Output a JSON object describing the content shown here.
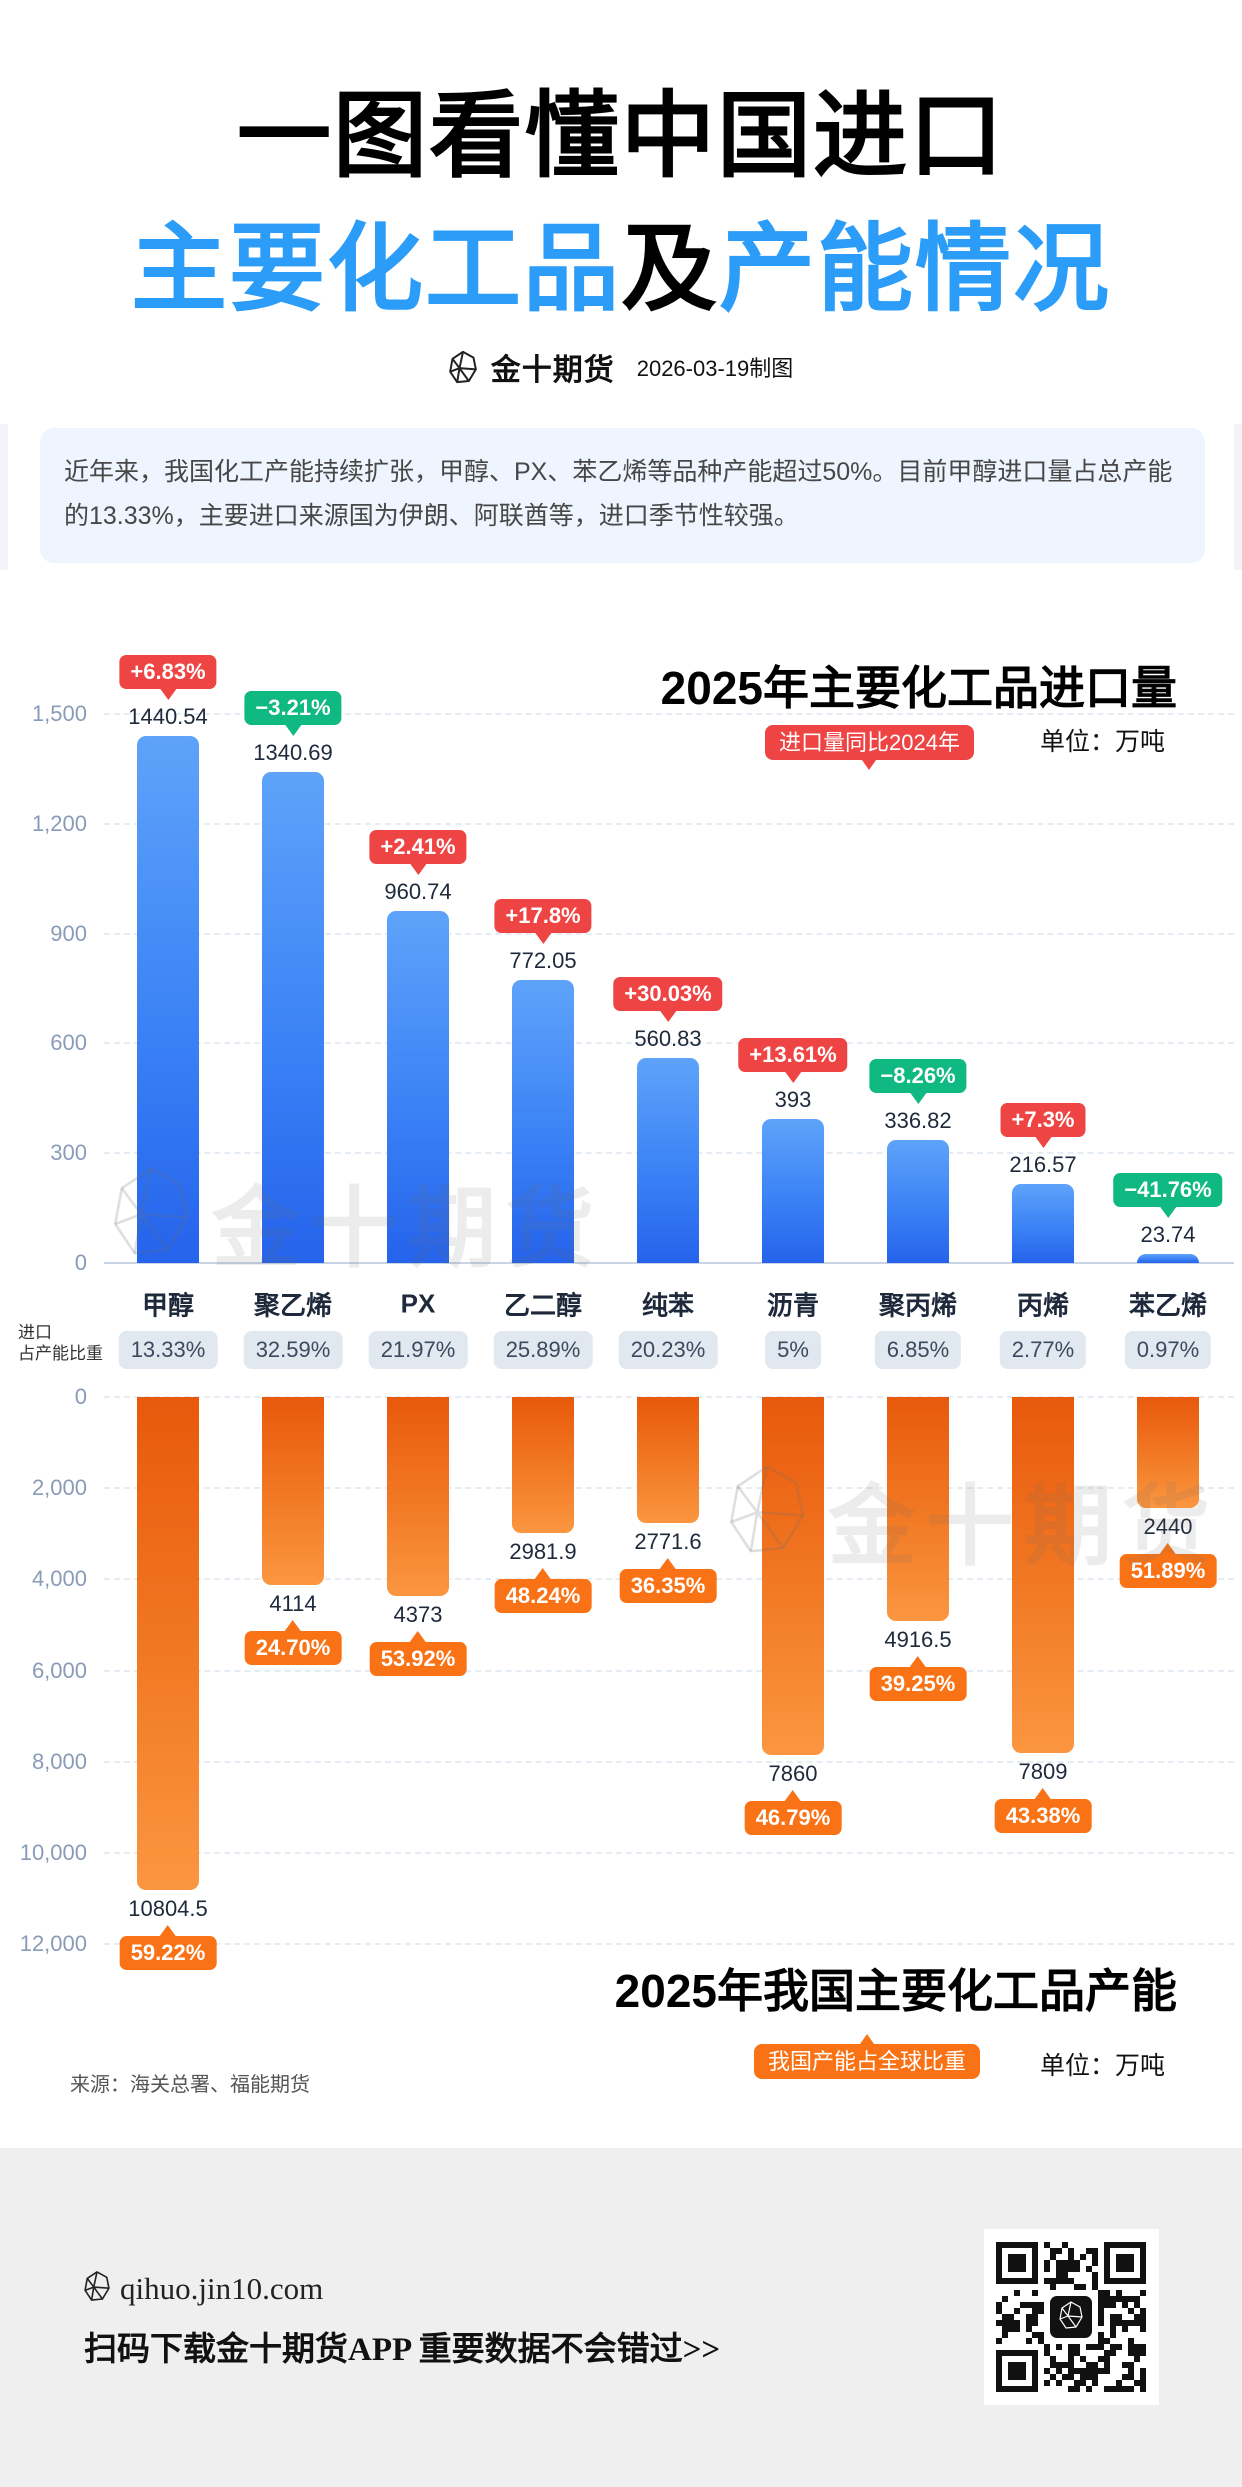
{
  "header": {
    "title_line1": "一图看懂中国进口",
    "title_line2_a": "主要化工品",
    "title_line2_b": "及",
    "title_line2_c": "产能情况",
    "brand_name": "金十期货",
    "date_label": "2026-03-19制图"
  },
  "intro": {
    "text": "近年来，我国化工产能持续扩张，甲醇、PX、苯乙烯等品种产能超过50%。目前甲醇进口量占总产能的13.33%，主要进口来源国为伊朗、阿联酋等，进口季节性较强。"
  },
  "colors": {
    "title_accent": "#2b9cf8",
    "import_bar": "#3b82f6",
    "capacity_bar": "#f97316",
    "increase": "#ef4444",
    "decrease": "#10b981",
    "share_badge": "#f97316"
  },
  "ratio_row": {
    "label_line1": "进口",
    "label_line2": "占产能比重",
    "values": [
      "13.33%",
      "32.59%",
      "21.97%",
      "25.89%",
      "20.23%",
      "5%",
      "6.85%",
      "2.77%",
      "0.97%"
    ]
  },
  "chart_data": [
    {
      "type": "bar",
      "orientation": "upward",
      "title": "2025年主要化工品进口量",
      "unit_label": "单位：万吨",
      "legend_badge": "进口量同比2024年",
      "xlabel": "",
      "ylabel": "万吨",
      "categories": [
        "甲醇",
        "聚乙烯",
        "PX",
        "乙二醇",
        "纯苯",
        "沥青",
        "聚丙烯",
        "丙烯",
        "苯乙烯"
      ],
      "values": [
        1440.54,
        1340.69,
        960.74,
        772.05,
        560.83,
        393,
        336.82,
        216.57,
        23.74
      ],
      "value_labels": [
        "1440.54",
        "1340.69",
        "960.74",
        "772.05",
        "560.83",
        "393",
        "336.82",
        "216.57",
        "23.74"
      ],
      "yoy_change": [
        "+6.83%",
        "−3.21%",
        "+2.41%",
        "+17.8%",
        "+30.03%",
        "+13.61%",
        "−8.26%",
        "+7.3%",
        "−41.76%"
      ],
      "ylim": [
        0,
        1500
      ],
      "ytick_values": [
        0,
        300,
        600,
        900,
        1200,
        1500
      ],
      "ytick_labels": [
        "0",
        "300",
        "600",
        "900",
        "1,200",
        "1,500"
      ],
      "grid": true
    },
    {
      "type": "bar",
      "orientation": "downward",
      "title": "2025年我国主要化工品产能",
      "unit_label": "单位：万吨",
      "legend_badge": "我国产能占全球比重",
      "xlabel": "",
      "ylabel": "万吨",
      "categories": [
        "甲醇",
        "聚乙烯",
        "PX",
        "乙二醇",
        "纯苯",
        "沥青",
        "聚丙烯",
        "丙烯",
        "苯乙烯"
      ],
      "values": [
        10804.5,
        4114,
        4373,
        2981.9,
        2771.6,
        7860,
        4916.5,
        7809,
        2440
      ],
      "value_labels": [
        "10804.5",
        "4114",
        "4373",
        "2981.9",
        "2771.6",
        "7860",
        "4916.5",
        "7809",
        "2440"
      ],
      "global_share": [
        "59.22%",
        "24.70%",
        "53.92%",
        "48.24%",
        "36.35%",
        "46.79%",
        "39.25%",
        "43.38%",
        "51.89%"
      ],
      "ylim": [
        0,
        12000
      ],
      "ytick_values": [
        0,
        2000,
        4000,
        6000,
        8000,
        10000,
        12000
      ],
      "ytick_labels": [
        "0",
        "2,000",
        "4,000",
        "6,000",
        "8,000",
        "10,000",
        "12,000"
      ],
      "grid": true
    }
  ],
  "source": "来源：海关总署、福能期货",
  "watermark": "金十期货",
  "footer": {
    "url": "qihuo.jin10.com",
    "cta": "扫码下载金十期货APP 重要数据不会错过>>"
  }
}
